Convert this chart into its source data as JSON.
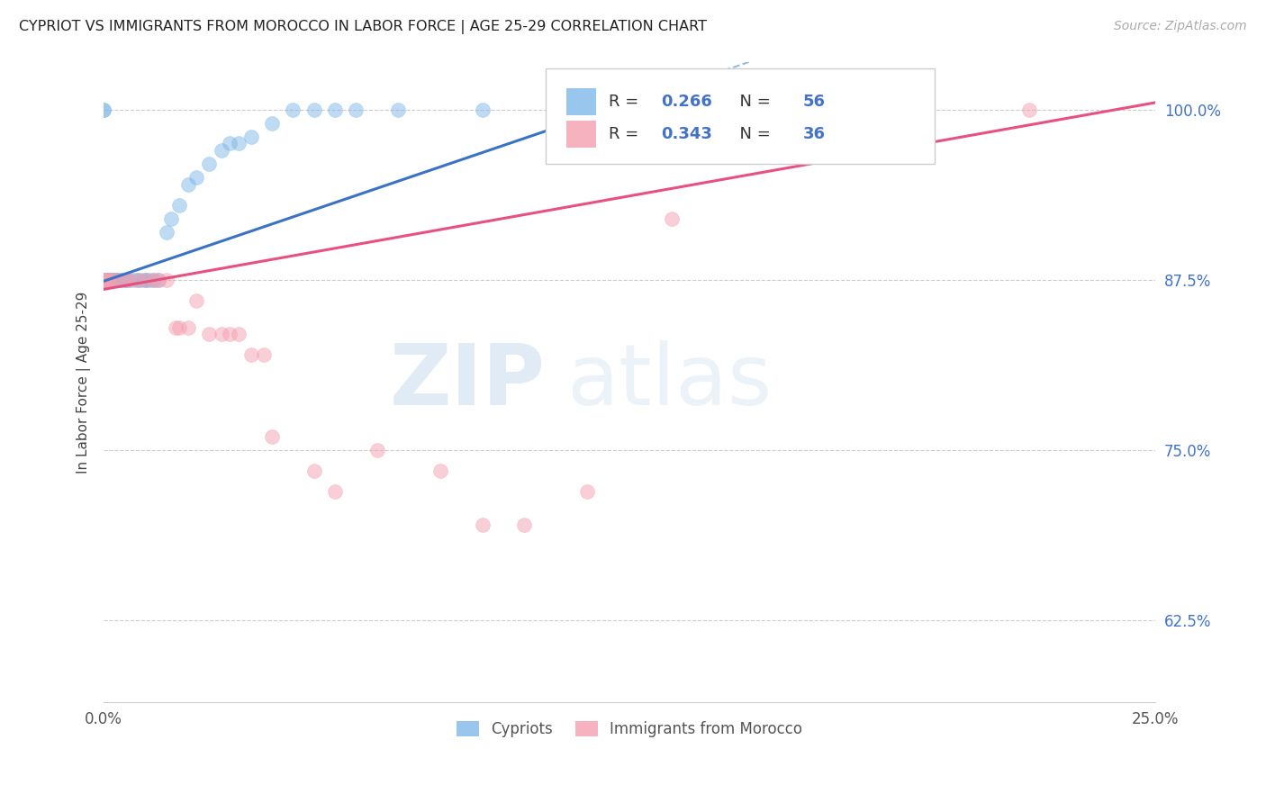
{
  "title": "CYPRIOT VS IMMIGRANTS FROM MOROCCO IN LABOR FORCE | AGE 25-29 CORRELATION CHART",
  "source": "Source: ZipAtlas.com",
  "ylabel": "In Labor Force | Age 25-29",
  "xlim": [
    0.0,
    0.25
  ],
  "ylim": [
    0.565,
    1.035
  ],
  "xticks": [
    0.0,
    0.05,
    0.1,
    0.15,
    0.2,
    0.25
  ],
  "xticklabels": [
    "0.0%",
    "",
    "",
    "",
    "",
    "25.0%"
  ],
  "yticks": [
    0.625,
    0.75,
    0.875,
    1.0
  ],
  "yticklabels": [
    "62.5%",
    "75.0%",
    "87.5%",
    "100.0%"
  ],
  "blue_R": 0.266,
  "blue_N": 56,
  "pink_R": 0.343,
  "pink_N": 36,
  "blue_color": "#7fb8e8",
  "pink_color": "#f4a0b0",
  "blue_line_color": "#3a72c4",
  "pink_line_color": "#e85080",
  "watermark_zip": "ZIP",
  "watermark_atlas": "atlas",
  "cypriot_x": [
    0.0,
    0.0,
    0.0,
    0.0,
    0.0,
    0.0,
    0.0,
    0.0,
    0.0,
    0.0,
    0.0,
    0.0,
    0.001,
    0.001,
    0.001,
    0.001,
    0.001,
    0.002,
    0.002,
    0.002,
    0.003,
    0.003,
    0.003,
    0.004,
    0.004,
    0.005,
    0.005,
    0.006,
    0.007,
    0.008,
    0.009,
    0.01,
    0.01,
    0.011,
    0.012,
    0.013,
    0.015,
    0.016,
    0.018,
    0.02,
    0.022,
    0.025,
    0.028,
    0.03,
    0.032,
    0.035,
    0.04,
    0.045,
    0.05,
    0.055,
    0.06,
    0.07,
    0.09,
    0.115,
    0.12,
    0.125
  ],
  "cypriot_y": [
    0.875,
    0.875,
    0.875,
    0.875,
    0.875,
    0.875,
    0.875,
    0.875,
    0.875,
    0.875,
    1.0,
    1.0,
    0.875,
    0.875,
    0.875,
    0.875,
    0.875,
    0.875,
    0.875,
    0.875,
    0.875,
    0.875,
    0.875,
    0.875,
    0.875,
    0.875,
    0.875,
    0.875,
    0.875,
    0.875,
    0.875,
    0.875,
    0.875,
    0.875,
    0.875,
    0.875,
    0.91,
    0.92,
    0.93,
    0.945,
    0.95,
    0.96,
    0.97,
    0.975,
    0.975,
    0.98,
    0.99,
    1.0,
    1.0,
    1.0,
    1.0,
    1.0,
    1.0,
    1.0,
    1.0,
    1.0
  ],
  "morocco_x": [
    0.0,
    0.0,
    0.0,
    0.0,
    0.0,
    0.001,
    0.001,
    0.002,
    0.003,
    0.005,
    0.006,
    0.008,
    0.01,
    0.012,
    0.013,
    0.015,
    0.017,
    0.018,
    0.02,
    0.022,
    0.025,
    0.028,
    0.03,
    0.032,
    0.035,
    0.038,
    0.04,
    0.05,
    0.055,
    0.065,
    0.08,
    0.09,
    0.1,
    0.115,
    0.135,
    0.22
  ],
  "morocco_y": [
    0.875,
    0.875,
    0.875,
    0.875,
    0.875,
    0.875,
    0.875,
    0.875,
    0.875,
    0.875,
    0.875,
    0.875,
    0.875,
    0.875,
    0.875,
    0.875,
    0.84,
    0.84,
    0.84,
    0.86,
    0.835,
    0.835,
    0.835,
    0.835,
    0.82,
    0.82,
    0.76,
    0.735,
    0.72,
    0.75,
    0.735,
    0.695,
    0.695,
    0.72,
    0.92,
    1.0
  ],
  "blue_line_x0": 0.0,
  "blue_line_y0": 0.874,
  "blue_line_x1": 0.125,
  "blue_line_y1": 1.005,
  "pink_line_x0": 0.0,
  "pink_line_y0": 0.868,
  "pink_line_x1": 0.25,
  "pink_line_y1": 1.005
}
